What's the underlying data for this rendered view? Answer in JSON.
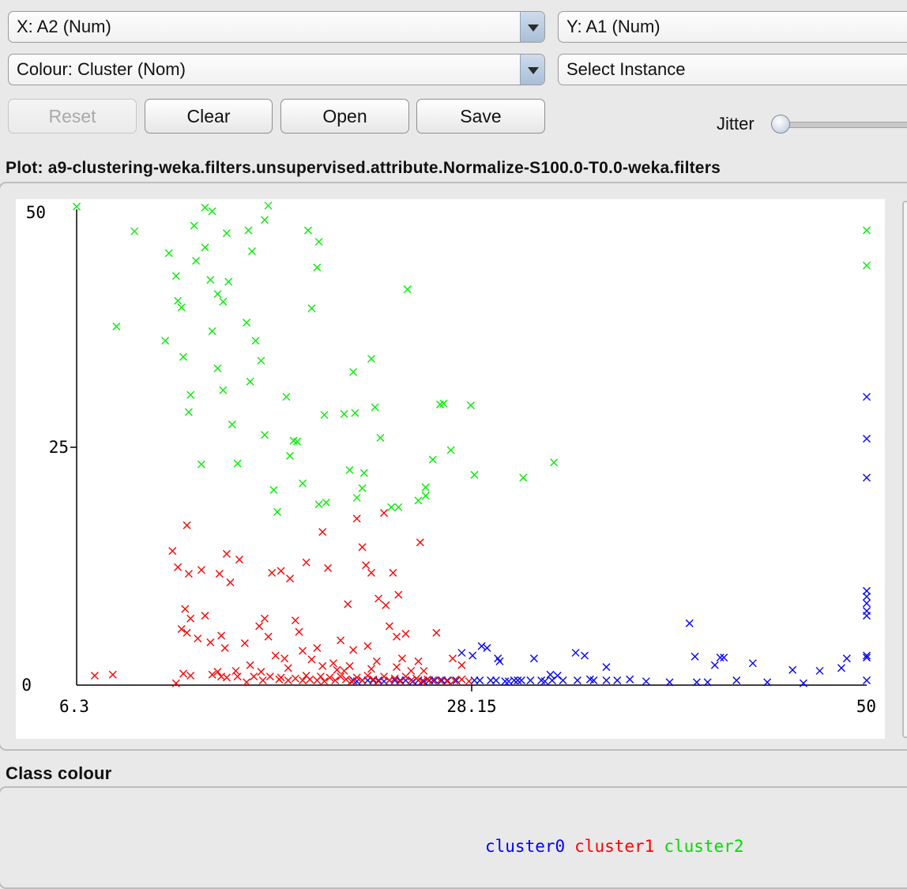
{
  "controls": {
    "x_axis_label": "X: A2 (Num)",
    "y_axis_label": "Y: A1 (Num)",
    "colour_label": "Colour: Cluster (Nom)",
    "select_label": "Select Instance",
    "reset_label": "Reset",
    "clear_label": "Clear",
    "open_label": "Open",
    "save_label": "Save",
    "jitter_label": "Jitter",
    "jitter_value": 0
  },
  "plot_title": "Plot: a9-clustering-weka.filters.unsupervised.attribute.Normalize-S100.0-T0.0-weka.filters",
  "class_colour_title": "Class colour",
  "colors": {
    "cluster0": "#0000ff",
    "cluster1": "#ff0000",
    "cluster2": "#00ee00"
  },
  "chart_data": {
    "type": "scatter",
    "title": "",
    "xlabel": "",
    "ylabel": "",
    "xlim": [
      6.3,
      50
    ],
    "ylim": [
      0,
      50
    ],
    "x_tick_labels": [
      "6.3",
      "28.15",
      "50"
    ],
    "y_tick_labels": [
      "50",
      "25",
      "0"
    ],
    "marker": "x",
    "legend": [
      "cluster0",
      "cluster1",
      "cluster2"
    ],
    "series": [
      {
        "name": "cluster0",
        "points": [
          [
            50,
            30.3
          ],
          [
            50,
            25.9
          ],
          [
            50,
            21.8
          ],
          [
            50,
            9.9
          ],
          [
            50,
            9.3
          ],
          [
            50,
            8.6
          ],
          [
            50,
            7.8
          ],
          [
            50,
            7.3
          ],
          [
            50,
            3.1
          ],
          [
            50,
            2.9
          ],
          [
            50,
            0.5
          ],
          [
            48.9,
            2.8
          ],
          [
            48.6,
            1.8
          ],
          [
            47.4,
            1.5
          ],
          [
            46.5,
            0.2
          ],
          [
            45.9,
            1.6
          ],
          [
            44.5,
            0.3
          ],
          [
            43.7,
            2.3
          ],
          [
            42.8,
            0.5
          ],
          [
            42.1,
            2.9
          ],
          [
            41.9,
            2.9
          ],
          [
            41.6,
            2.1
          ],
          [
            41.2,
            0.3
          ],
          [
            40.5,
            3
          ],
          [
            40.2,
            6.5
          ],
          [
            39.1,
            0.3
          ],
          [
            36.9,
            0.6
          ],
          [
            36.2,
            0.5
          ],
          [
            35.6,
            0.5
          ],
          [
            35.6,
            1.9
          ],
          [
            34.9,
            0.5
          ],
          [
            34.4,
            3.1
          ],
          [
            34,
            0.5
          ],
          [
            33.9,
            3.4
          ],
          [
            33.2,
            0.5
          ],
          [
            32.9,
            1
          ],
          [
            32.6,
            0.5
          ],
          [
            32.5,
            1.1
          ],
          [
            32.2,
            0.4
          ],
          [
            32,
            0.5
          ],
          [
            31.6,
            2.8
          ],
          [
            30.9,
            0.5
          ],
          [
            30.7,
            0.5
          ],
          [
            30.5,
            0.5
          ],
          [
            30.2,
            0.4
          ],
          [
            29.7,
            2.5
          ],
          [
            29.6,
            2.8
          ],
          [
            29.5,
            0.5
          ],
          [
            29.2,
            0.5
          ],
          [
            29,
            3.9
          ],
          [
            28.7,
            4.1
          ],
          [
            28.6,
            0.5
          ],
          [
            28.2,
            3.1
          ],
          [
            27.6,
            3.4
          ],
          [
            27.3,
            0.5
          ],
          [
            26.8,
            0.5
          ],
          [
            26.5,
            0.5
          ],
          [
            26.1,
            0.5
          ],
          [
            25.8,
            0.5
          ],
          [
            25.5,
            0.4
          ],
          [
            25.2,
            0.5
          ],
          [
            24.9,
            0.4
          ],
          [
            24.5,
            0.5
          ],
          [
            24.2,
            0.5
          ],
          [
            23.9,
            0.5
          ],
          [
            23.6,
            0.5
          ],
          [
            23.3,
            0.4
          ],
          [
            23,
            0.5
          ],
          [
            22.7,
            0.5
          ],
          [
            22.4,
            0.5
          ],
          [
            22.1,
            0.5
          ],
          [
            21.8,
            0.4
          ],
          [
            21.6,
            0.5
          ],
          [
            28.3,
            0.5
          ],
          [
            30,
            0.4
          ],
          [
            31.4,
            0.5
          ],
          [
            34.7,
            0.6
          ],
          [
            37.8,
            0.4
          ],
          [
            40.6,
            0.3
          ]
        ]
      },
      {
        "name": "cluster1",
        "points": [
          [
            7.3,
            1
          ],
          [
            8.3,
            1.1
          ],
          [
            11.8,
            0.2
          ],
          [
            11.6,
            14.1
          ],
          [
            12.4,
            16.8
          ],
          [
            11.9,
            12.4
          ],
          [
            12.5,
            11.7
          ],
          [
            12.3,
            8
          ],
          [
            12.6,
            7
          ],
          [
            12.1,
            5.9
          ],
          [
            12.4,
            5.5
          ],
          [
            12.2,
            1.2
          ],
          [
            12.6,
            1
          ],
          [
            13.2,
            12.1
          ],
          [
            13.4,
            7.3
          ],
          [
            13,
            4.9
          ],
          [
            13.7,
            4.5
          ],
          [
            14.1,
            1.4
          ],
          [
            14.3,
            0.9
          ],
          [
            14.2,
            11.7
          ],
          [
            14.6,
            13.8
          ],
          [
            14.8,
            10.8
          ],
          [
            14.3,
            5.2
          ],
          [
            14.5,
            3.9
          ],
          [
            15.3,
            13.2
          ],
          [
            15.6,
            4.4
          ],
          [
            15.2,
            0.9
          ],
          [
            15.7,
            0.3
          ],
          [
            15.1,
            1.5
          ],
          [
            14.6,
            0.8
          ],
          [
            13.8,
            1.1
          ],
          [
            15.9,
            2.1
          ],
          [
            16.1,
            0.9
          ],
          [
            16.4,
            6.2
          ],
          [
            16.7,
            7
          ],
          [
            16.9,
            5.1
          ],
          [
            16.5,
            1.4
          ],
          [
            17.1,
            11.8
          ],
          [
            17.3,
            3.1
          ],
          [
            17.6,
            0.8
          ],
          [
            17.8,
            2.8
          ],
          [
            18,
            1.8
          ],
          [
            17.6,
            12
          ],
          [
            18.1,
            11.2
          ],
          [
            18.4,
            6.8
          ],
          [
            18.6,
            5.6
          ],
          [
            18.8,
            3.6
          ],
          [
            19,
            12.9
          ],
          [
            19.3,
            2.7
          ],
          [
            19.6,
            3.9
          ],
          [
            19.9,
            16.1
          ],
          [
            20.2,
            12.3
          ],
          [
            20.5,
            2.3
          ],
          [
            20.9,
            4.7
          ],
          [
            21.1,
            1.5
          ],
          [
            21.3,
            8.5
          ],
          [
            21.8,
            17.5
          ],
          [
            21.6,
            3.7
          ],
          [
            22.1,
            14.5
          ],
          [
            22.3,
            12.6
          ],
          [
            22.4,
            4.1
          ],
          [
            22.6,
            11.8
          ],
          [
            22.9,
            2.5
          ],
          [
            23,
            9.1
          ],
          [
            23.3,
            18.1
          ],
          [
            23.6,
            6.2
          ],
          [
            23.4,
            8.4
          ],
          [
            23.8,
            11.8
          ],
          [
            24,
            5.1
          ],
          [
            24.1,
            9.5
          ],
          [
            24.3,
            2.8
          ],
          [
            24.5,
            5.4
          ],
          [
            25.2,
            2.5
          ],
          [
            25.3,
            15
          ],
          [
            25.5,
            1.5
          ],
          [
            26.2,
            5.5
          ],
          [
            27.1,
            2.8
          ],
          [
            27.6,
            2.1
          ],
          [
            16.6,
            0.5
          ],
          [
            17,
            0.9
          ],
          [
            17.5,
            0.6
          ],
          [
            18,
            0.5
          ],
          [
            18.4,
            0.7
          ],
          [
            18.8,
            0.5
          ],
          [
            19,
            1
          ],
          [
            19.2,
            0.6
          ],
          [
            19.6,
            0.5
          ],
          [
            19.8,
            0.9
          ],
          [
            20,
            0.4
          ],
          [
            20.3,
            0.8
          ],
          [
            20.6,
            0.5
          ],
          [
            20.9,
            0.9
          ],
          [
            21.2,
            0.6
          ],
          [
            21.5,
            0.4
          ],
          [
            21.8,
            0.8
          ],
          [
            22.1,
            0.5
          ],
          [
            22.4,
            1
          ],
          [
            22.7,
            0.6
          ],
          [
            23,
            0.4
          ],
          [
            23.3,
            0.9
          ],
          [
            23.6,
            0.5
          ],
          [
            23.9,
            0.7
          ],
          [
            24.2,
            0.4
          ],
          [
            24.5,
            0.9
          ],
          [
            24.8,
            0.5
          ],
          [
            25.1,
            0.7
          ],
          [
            25.4,
            0.4
          ],
          [
            25.7,
            0.6
          ],
          [
            26,
            0.5
          ],
          [
            26.4,
            0.5
          ],
          [
            26.8,
            0.4
          ],
          [
            27.2,
            0.5
          ],
          [
            27.6,
            0.6
          ],
          [
            28,
            0.4
          ],
          [
            19.9,
            2
          ],
          [
            20.7,
            1.6
          ],
          [
            21.4,
            2
          ],
          [
            22.6,
            1.7
          ],
          [
            24,
            1.9
          ],
          [
            24.8,
            1.5
          ]
        ]
      },
      {
        "name": "cluster2",
        "points": [
          [
            6.3,
            50.3
          ],
          [
            8.5,
            37.7
          ],
          [
            9.5,
            47.7
          ],
          [
            11.2,
            36.2
          ],
          [
            11.4,
            45.4
          ],
          [
            11.8,
            43
          ],
          [
            11.9,
            40.4
          ],
          [
            12.1,
            39.7
          ],
          [
            12.8,
            48.3
          ],
          [
            12.2,
            34.5
          ],
          [
            12.5,
            28.7
          ],
          [
            12.6,
            30.5
          ],
          [
            12.9,
            44.6
          ],
          [
            13.4,
            50.2
          ],
          [
            13.4,
            46
          ],
          [
            13.8,
            49.8
          ],
          [
            13.2,
            23.2
          ],
          [
            13.7,
            42.6
          ],
          [
            13.8,
            37.2
          ],
          [
            14.1,
            41.1
          ],
          [
            14.4,
            31
          ],
          [
            14.1,
            33.3
          ],
          [
            14.4,
            40.3
          ],
          [
            14.7,
            42.4
          ],
          [
            14.6,
            47.5
          ],
          [
            14.9,
            27.4
          ],
          [
            15.2,
            23.3
          ],
          [
            15.8,
            47.8
          ],
          [
            15.7,
            38.1
          ],
          [
            15.9,
            31.9
          ],
          [
            16,
            45.6
          ],
          [
            16.2,
            36.2
          ],
          [
            16.7,
            48.9
          ],
          [
            16.5,
            34.1
          ],
          [
            16.9,
            50.4
          ],
          [
            16.7,
            26.3
          ],
          [
            17.2,
            20.5
          ],
          [
            17.4,
            18.2
          ],
          [
            17.9,
            30.3
          ],
          [
            18.1,
            24.1
          ],
          [
            18.3,
            25.7
          ],
          [
            18.5,
            25.6
          ],
          [
            18.8,
            21.2
          ],
          [
            19.1,
            47.8
          ],
          [
            19.3,
            39.6
          ],
          [
            19.7,
            19
          ],
          [
            19.7,
            46.6
          ],
          [
            19.6,
            43.9
          ],
          [
            20,
            28.4
          ],
          [
            20.1,
            19.2
          ],
          [
            21.1,
            28.5
          ],
          [
            21.4,
            22.6
          ],
          [
            21.6,
            32.9
          ],
          [
            21.7,
            28.6
          ],
          [
            21.8,
            19.7
          ],
          [
            22.1,
            20.7
          ],
          [
            22.2,
            22.3
          ],
          [
            22.6,
            34.3
          ],
          [
            22.8,
            29.2
          ],
          [
            23.1,
            26
          ],
          [
            23.7,
            18.7
          ],
          [
            24.1,
            18.7
          ],
          [
            24.6,
            41.6
          ],
          [
            25.2,
            19.4
          ],
          [
            25.6,
            19.9
          ],
          [
            25.6,
            20.8
          ],
          [
            26,
            23.7
          ],
          [
            26.4,
            29.5
          ],
          [
            26.6,
            29.6
          ],
          [
            27,
            24.7
          ],
          [
            28.1,
            29.4
          ],
          [
            28.3,
            22.1
          ],
          [
            31,
            21.8
          ],
          [
            32.7,
            23.4
          ],
          [
            50,
            47.8
          ],
          [
            50,
            44.1
          ]
        ]
      }
    ]
  }
}
